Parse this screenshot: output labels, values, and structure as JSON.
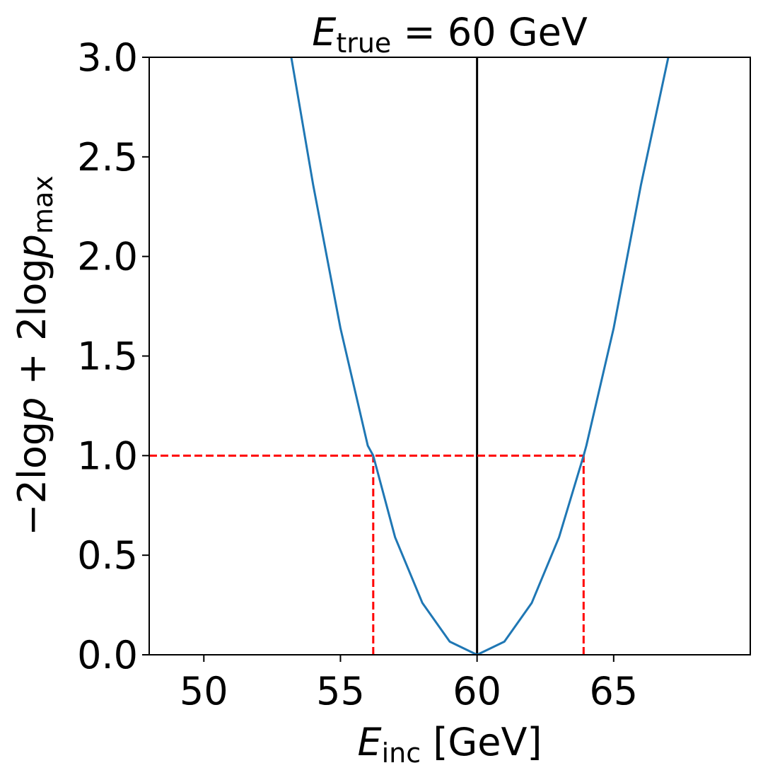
{
  "chart_data": {
    "type": "line",
    "title": {
      "symbol": "E",
      "subscript": "true",
      "rest": " = 60 GeV"
    },
    "xlabel": {
      "symbol": "E",
      "subscript": "inc",
      "rest": " [GeV]"
    },
    "ylabel": {
      "prefix": "−2log",
      "p1": "p",
      "mid": " + 2log",
      "p2": "p",
      "subscript": "max"
    },
    "xlim": [
      48.0,
      70.0
    ],
    "ylim": [
      0.0,
      3.0
    ],
    "xticks": [
      50,
      55,
      60,
      65
    ],
    "xtick_labels": [
      "50",
      "55",
      "60",
      "65"
    ],
    "yticks": [
      0.0,
      0.5,
      1.0,
      1.5,
      2.0,
      2.5,
      3.0
    ],
    "ytick_labels": [
      "0.0",
      "0.5",
      "1.0",
      "1.5",
      "2.0",
      "2.5",
      "3.0"
    ],
    "grid": false,
    "series": [
      {
        "color": "#1f77b4",
        "x": [
          53.2,
          54.0,
          55.0,
          56.0,
          56.2,
          57.0,
          58.0,
          59.0,
          60.0,
          61.0,
          62.0,
          63.0,
          63.9,
          64.0,
          65.0,
          66.0,
          67.0
        ],
        "y": [
          3.0,
          2.36,
          1.64,
          1.05,
          1.0,
          0.59,
          0.26,
          0.066,
          0.0,
          0.066,
          0.26,
          0.59,
          1.0,
          1.05,
          1.64,
          2.36,
          3.0
        ]
      }
    ],
    "reference_lines": {
      "vertical_solid": {
        "x": 60.0,
        "color": "#000000"
      },
      "horizontal_dashed": {
        "y": 1.0,
        "x_end": 63.9,
        "color": "#ff0000"
      },
      "vertical_dashed": [
        {
          "x": 56.2,
          "y_end": 1.0,
          "color": "#ff0000"
        },
        {
          "x": 63.9,
          "y_end": 1.0,
          "color": "#ff0000"
        }
      ]
    }
  }
}
